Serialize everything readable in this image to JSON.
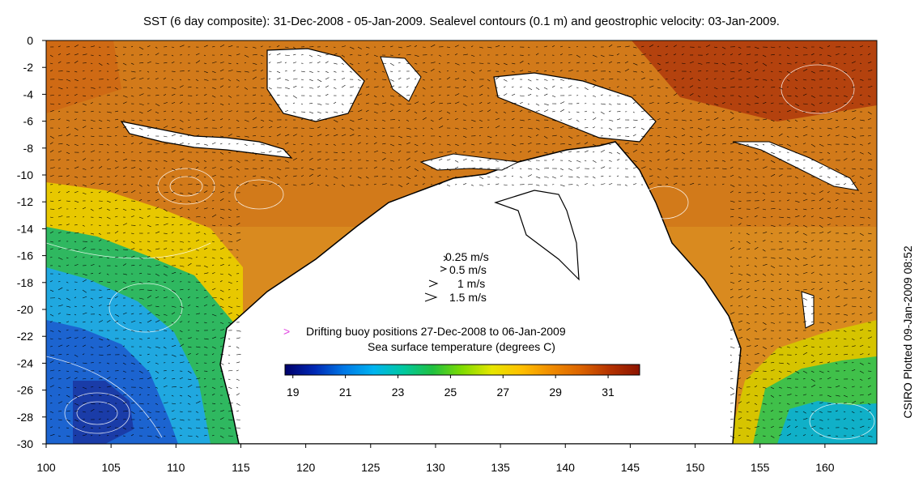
{
  "header": {
    "title": "SST (6 day composite): 31-Dec-2008 - 05-Jan-2009. Sealevel contours (0.1 m) and geostrophic velocity: 03-Jan-2009."
  },
  "credit": "CSIRO Plotted 09-Jan-2009 08:52",
  "map": {
    "x_ticks": [
      100,
      105,
      110,
      115,
      120,
      125,
      130,
      135,
      140,
      145,
      150,
      155,
      160
    ],
    "y_ticks": [
      0,
      -2,
      -4,
      -6,
      -8,
      -10,
      -12,
      -14,
      -16,
      -18,
      -20,
      -22,
      -24,
      -26,
      -28,
      -30
    ],
    "xlim": [
      100,
      164
    ],
    "ylim": [
      -30,
      0
    ],
    "land_color": "#ffffff",
    "coast_color": "#000000",
    "contour_color": "#ffffff"
  },
  "velocity_legend": {
    "items": [
      "0.25 m/s",
      "0.5 m/s",
      "1 m/s",
      "1.5 m/s"
    ]
  },
  "buoy_legend": {
    "marker": ">",
    "marker_color": "#e040e0",
    "label": "Drifting buoy positions 27-Dec-2008 to 06-Jan-2009"
  },
  "colorbar": {
    "title": "Sea surface temperature (degrees C)",
    "min": 18.7,
    "max": 32.2,
    "ticks": [
      19,
      21,
      23,
      25,
      27,
      29,
      31
    ],
    "colors": [
      "#00006a",
      "#0028b4",
      "#0078e6",
      "#00b4f0",
      "#00c8a0",
      "#20c040",
      "#80dc00",
      "#e6e600",
      "#ffc000",
      "#f08c00",
      "#dc6400",
      "#b43200",
      "#8c1400"
    ]
  }
}
